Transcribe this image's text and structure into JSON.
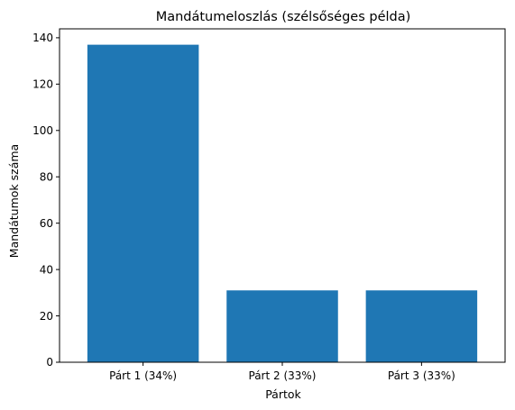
{
  "chart_data": {
    "type": "bar",
    "title": "Mandátumeloszlás (szélsőséges példa)",
    "xlabel": "Pártok",
    "ylabel": "Mandátumok száma",
    "categories": [
      "Párt 1 (34%)",
      "Párt 2 (33%)",
      "Párt 3 (33%)"
    ],
    "values": [
      137,
      31,
      31
    ],
    "ylim": [
      0,
      143.85
    ],
    "yticks": [
      0,
      20,
      40,
      60,
      80,
      100,
      120,
      140
    ],
    "grid": false,
    "bar_color": "#1f77b4"
  }
}
